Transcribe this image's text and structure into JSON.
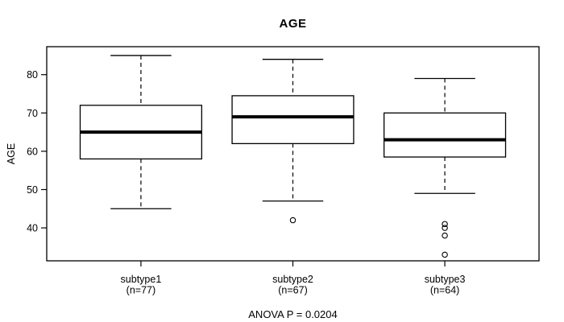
{
  "chart_data": {
    "type": "box",
    "title": "AGE",
    "ylabel": "AGE",
    "xlabel": "",
    "annotation": "ANOVA P = 0.0204",
    "yticks": [
      40,
      50,
      60,
      70,
      80
    ],
    "ylim": [
      31.4,
      87.3
    ],
    "xlim": [
      0.38,
      3.62
    ],
    "box_width": 0.8,
    "cap_width": 0.4,
    "grid": false,
    "legend": false,
    "colors": {
      "line": "#000000",
      "background": "#ffffff",
      "box_fill": "#ffffff"
    },
    "groups": [
      {
        "label": "subtype1",
        "sublabel": "(n=77)",
        "position": 1,
        "whisker_low": 45,
        "q1": 58,
        "median": 65,
        "q3": 72,
        "whisker_high": 85,
        "outliers": []
      },
      {
        "label": "subtype2",
        "sublabel": "(n=67)",
        "position": 2,
        "whisker_low": 47,
        "q1": 62,
        "median": 69,
        "q3": 74.5,
        "whisker_high": 84,
        "outliers": [
          42
        ]
      },
      {
        "label": "subtype3",
        "sublabel": "(n=64)",
        "position": 3,
        "whisker_low": 49,
        "q1": 58.5,
        "median": 63,
        "q3": 70,
        "whisker_high": 79,
        "outliers": [
          41,
          40,
          38,
          33
        ]
      }
    ]
  }
}
